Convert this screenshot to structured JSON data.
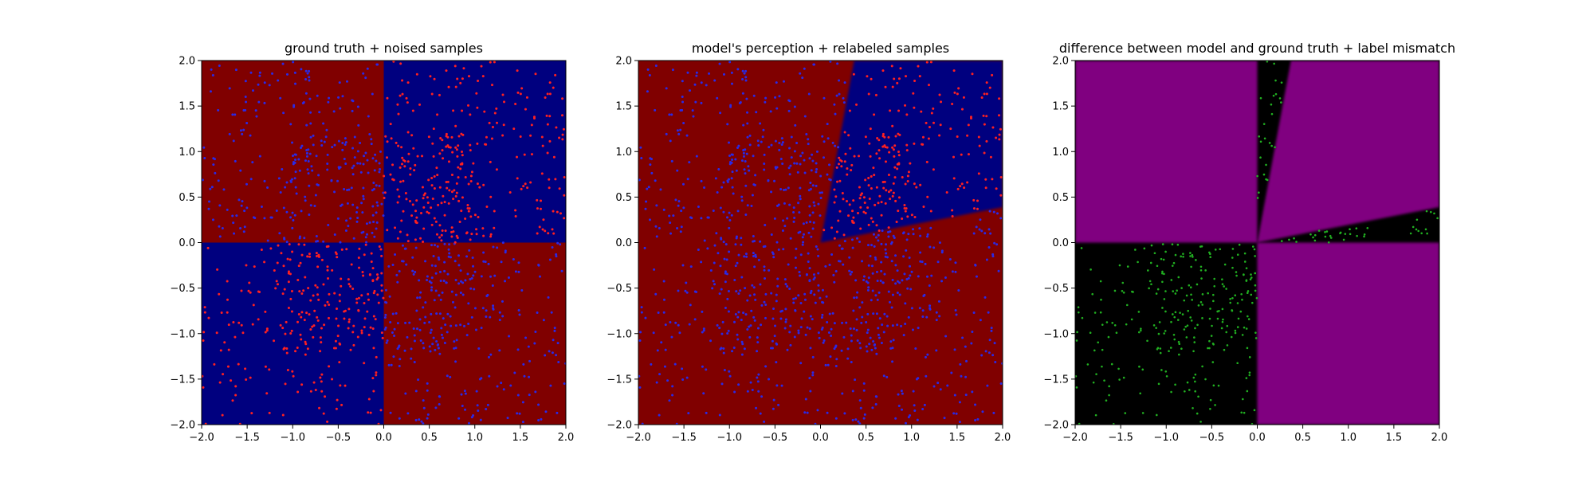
{
  "colors": {
    "dark_red": "#800000",
    "dark_blue": "#00007f",
    "purple": "#800080",
    "black": "#000000",
    "red_point": "#ff2020",
    "blue_point": "#2a2ae6",
    "green_point": "#21b021"
  },
  "chart_data": [
    {
      "type": "scatter",
      "title": "ground truth + noised samples",
      "xlabel": "",
      "ylabel": "",
      "xlim": [
        -2.0,
        2.0
      ],
      "ylim": [
        -2.0,
        2.0
      ],
      "xticks": [
        "−2.0",
        "−1.5",
        "−1.0",
        "−0.5",
        "0.0",
        "0.5",
        "1.0",
        "1.5",
        "2.0"
      ],
      "yticks": [
        "−2.0",
        "−1.5",
        "−1.0",
        "−0.5",
        "0.0",
        "0.5",
        "1.0",
        "1.5",
        "2.0"
      ],
      "grid": false,
      "background_regions": [
        {
          "quadrant": "x<0, y>0",
          "color": "dark_red"
        },
        {
          "quadrant": "x>0, y>0",
          "color": "dark_blue"
        },
        {
          "quadrant": "x<0, y<0",
          "color": "dark_blue"
        },
        {
          "quadrant": "x>0, y<0",
          "color": "dark_red"
        }
      ],
      "series": [
        {
          "color": "red_point",
          "description": "samples in quadrants x>0,y>0 and x<0,y<0 (approx. 600 points, uniform)"
        },
        {
          "color": "blue_point",
          "description": "samples in quadrants x<0,y>0 and x>0,y<0 (approx. 600 points, uniform)"
        }
      ]
    },
    {
      "type": "scatter",
      "title": "model's perception + relabeled samples",
      "xlabel": "",
      "ylabel": "",
      "xlim": [
        -2.0,
        2.0
      ],
      "ylim": [
        -2.0,
        2.0
      ],
      "xticks": [
        "−2.0",
        "−1.5",
        "−1.0",
        "−0.5",
        "0.0",
        "0.5",
        "1.0",
        "1.5",
        "2.0"
      ],
      "yticks": [
        "−2.0",
        "−1.5",
        "−1.0",
        "−0.5",
        "0.0",
        "0.5",
        "1.0",
        "1.5",
        "2.0"
      ],
      "grid": false,
      "decision_boundary": {
        "blue_wedge_vertex": [
          0.0,
          0.0
        ],
        "blue_wedge_top_edge": [
          [
            0.0,
            0.0
          ],
          [
            0.37,
            2.0
          ]
        ],
        "blue_wedge_right_edge": [
          [
            0.0,
            0.0
          ],
          [
            2.0,
            0.39
          ]
        ],
        "inside_color": "dark_blue",
        "outside_color": "dark_red"
      },
      "series": [
        {
          "color": "red_point",
          "description": "samples inside blue wedge"
        },
        {
          "color": "blue_point",
          "description": "all other samples"
        }
      ]
    },
    {
      "type": "scatter",
      "title": "difference between model and ground truth + label mismatch",
      "xlabel": "",
      "ylabel": "",
      "xlim": [
        -2.0,
        2.0
      ],
      "ylim": [
        -2.0,
        2.0
      ],
      "xticks": [
        "−2.0",
        "−1.5",
        "−1.0",
        "−0.5",
        "0.0",
        "0.5",
        "1.0",
        "1.5",
        "2.0"
      ],
      "yticks": [
        "−2.0",
        "−1.5",
        "−1.0",
        "−0.5",
        "0.0",
        "0.5",
        "1.0",
        "1.5",
        "2.0"
      ],
      "grid": false,
      "regions": "purple where model agrees with ground truth; black where it disagrees",
      "series": [
        {
          "color": "green_point",
          "description": "mismatched samples (x<0,y<0 quadrant and sliver regions x>0,y>0 outside wedge)"
        }
      ]
    }
  ]
}
